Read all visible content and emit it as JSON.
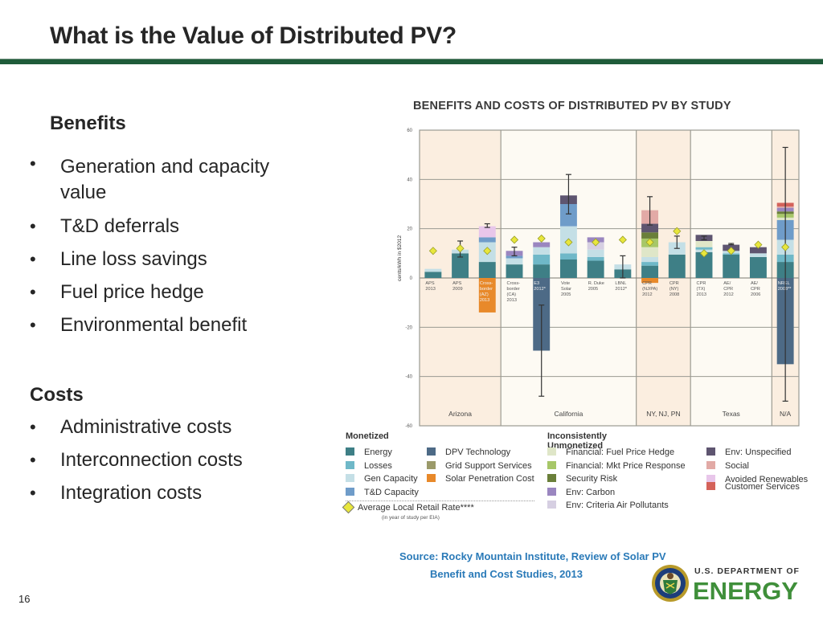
{
  "slide": {
    "title": "What is the Value of Distributed PV?",
    "page_number": "16",
    "benefits_heading": "Benefits",
    "benefits": [
      "Generation and capacity value",
      "T&D deferrals",
      "Line loss savings",
      "Fuel price hedge",
      "Environmental benefit"
    ],
    "costs_heading": "Costs",
    "costs": [
      "Administrative costs",
      "Interconnection costs",
      "Integration costs"
    ],
    "source_line1": "Source: Rocky Mountain Institute, Review of Solar PV",
    "source_line2": "Benefit and Cost Studies, 2013",
    "logo_top": "U.S. DEPARTMENT OF",
    "logo_main": "ENERGY"
  },
  "colors": {
    "title_rule": "#1f5c3a",
    "source_text": "#2a7ab8",
    "energy": "#3e7f86",
    "losses": "#6fb8c8",
    "gen_capacity": "#c4dfe6",
    "td_capacity": "#6f9cc9",
    "dpv_technology": "#4d6a86",
    "grid_support": "#9b9a6a",
    "solar_penetration": "#e8892a",
    "fuel_price_hedge": "#dfe6c8",
    "mkt_price_response": "#a7c768",
    "security_risk": "#6a7f3a",
    "env_carbon": "#9a86c0",
    "env_criteria": "#d6cfe2",
    "env_unspecified": "#5e5570",
    "social": "#e2aaa6",
    "avoided_renewables": "#e8c6ea",
    "customer_services": "#d4625a",
    "retail_rate_marker": "#e8e63c"
  },
  "chart_data": {
    "type": "bar",
    "stacked": true,
    "title": "BENEFITS AND COSTS OF DISTRIBUTED PV BY STUDY",
    "ylabel": "cents/kWh in $2012",
    "xlabel": "",
    "ylim": [
      -60,
      60
    ],
    "yticks": [
      60,
      40,
      20,
      0,
      -20,
      -40,
      -60
    ],
    "grid": true,
    "regions": [
      {
        "name": "Arizona",
        "studies": 3,
        "shaded": true
      },
      {
        "name": "California",
        "studies": 5,
        "shaded": false
      },
      {
        "name": "NY, NJ, PN",
        "studies": 2,
        "shaded": true
      },
      {
        "name": "Texas",
        "studies": 3,
        "shaded": false
      },
      {
        "name": "N/A",
        "studies": 1,
        "shaded": true
      }
    ],
    "categories": [
      "APS 2013",
      "APS 2009",
      "Cross-border (AZ) 2013",
      "Cross-border (CA) 2013",
      "E3 2012*",
      "Vote Solar 2005",
      "R. Duke 2005",
      "LBNL 2012*",
      "CPR (NJ/PA) 2012",
      "CPR (NY) 2008",
      "CPR (TX) 2013",
      "AE/CPR 2012",
      "AE/CPR 2006",
      "NREL 2008**"
    ],
    "category_labels": [
      [
        "APS",
        "2013"
      ],
      [
        "APS",
        "2009"
      ],
      [
        "Cross-",
        "border",
        "(AZ)",
        "2013"
      ],
      [
        "Cross-",
        "border",
        "(CA)",
        "2013"
      ],
      [
        "E3",
        "2012*"
      ],
      [
        "Vote",
        "Solar",
        "2005"
      ],
      [
        "R. Duke",
        "2005"
      ],
      [
        "LBNL",
        "2012*"
      ],
      [
        "CPR",
        "(NJ/PA)",
        "2012"
      ],
      [
        "CPR",
        "(NY)",
        "2008"
      ],
      [
        "CPR",
        "(TX)",
        "2013"
      ],
      [
        "AE/",
        "CPR",
        "2012"
      ],
      [
        "AE/",
        "CPR",
        "2006"
      ],
      [
        "NREL",
        "2008**"
      ]
    ],
    "stacks": [
      [
        {
          "k": "energy",
          "v": 2.5
        },
        {
          "k": "gen_capacity",
          "v": 1.2
        }
      ],
      [
        {
          "k": "energy",
          "v": 10
        },
        {
          "k": "gen_capacity",
          "v": 1.5
        }
      ],
      [
        {
          "k": "energy",
          "v": 6.5
        },
        {
          "k": "gen_capacity",
          "v": 8
        },
        {
          "k": "td_capacity",
          "v": 2
        },
        {
          "k": "avoided_renewables",
          "v": 4.5
        },
        {
          "k": "solar_penetration",
          "v": -14
        }
      ],
      [
        {
          "k": "energy",
          "v": 5.5
        },
        {
          "k": "gen_capacity",
          "v": 2.5
        },
        {
          "k": "td_capacity",
          "v": 1
        },
        {
          "k": "env_carbon",
          "v": 2
        }
      ],
      [
        {
          "k": "energy",
          "v": 5.5
        },
        {
          "k": "losses",
          "v": 4
        },
        {
          "k": "gen_capacity",
          "v": 3
        },
        {
          "k": "env_carbon",
          "v": 2
        },
        {
          "k": "dpv_technology",
          "v": -29.5
        }
      ],
      [
        {
          "k": "energy",
          "v": 7.5
        },
        {
          "k": "losses",
          "v": 2.5
        },
        {
          "k": "gen_capacity",
          "v": 11
        },
        {
          "k": "td_capacity",
          "v": 9
        },
        {
          "k": "env_unspecified",
          "v": 3.5
        }
      ],
      [
        {
          "k": "energy",
          "v": 7
        },
        {
          "k": "losses",
          "v": 1.5
        },
        {
          "k": "gen_capacity",
          "v": 3
        },
        {
          "k": "env_criteria",
          "v": 3
        },
        {
          "k": "env_carbon",
          "v": 2
        }
      ],
      [
        {
          "k": "energy",
          "v": 3.5
        },
        {
          "k": "gen_capacity",
          "v": 2
        }
      ],
      [
        {
          "k": "energy",
          "v": 5
        },
        {
          "k": "losses",
          "v": 1.5
        },
        {
          "k": "gen_capacity",
          "v": 2
        },
        {
          "k": "fuel_price_hedge",
          "v": 4
        },
        {
          "k": "mkt_price_response",
          "v": 3.5
        },
        {
          "k": "security_risk",
          "v": 2.5
        },
        {
          "k": "env_unspecified",
          "v": 3.5
        },
        {
          "k": "social",
          "v": 5.5
        },
        {
          "k": "solar_penetration",
          "v": -2
        }
      ],
      [
        {
          "k": "energy",
          "v": 9.5
        },
        {
          "k": "gen_capacity",
          "v": 5
        }
      ],
      [
        {
          "k": "energy",
          "v": 10.5
        },
        {
          "k": "gen_capacity",
          "v": 1
        },
        {
          "k": "losses",
          "v": 1
        },
        {
          "k": "fuel_price_hedge",
          "v": 2.5
        },
        {
          "k": "env_unspecified",
          "v": 2.5
        }
      ],
      [
        {
          "k": "energy",
          "v": 9.5
        },
        {
          "k": "losses",
          "v": 0.5
        },
        {
          "k": "gen_capacity",
          "v": 1
        },
        {
          "k": "env_unspecified",
          "v": 2.5
        }
      ],
      [
        {
          "k": "energy",
          "v": 8.5
        },
        {
          "k": "gen_capacity",
          "v": 1.5
        },
        {
          "k": "env_unspecified",
          "v": 2.5
        }
      ],
      [
        {
          "k": "energy",
          "v": 6.5
        },
        {
          "k": "losses",
          "v": 3
        },
        {
          "k": "gen_capacity",
          "v": 6
        },
        {
          "k": "td_capacity",
          "v": 8
        },
        {
          "k": "fuel_price_hedge",
          "v": 1
        },
        {
          "k": "mkt_price_response",
          "v": 1.5
        },
        {
          "k": "security_risk",
          "v": 1
        },
        {
          "k": "env_carbon",
          "v": 1.5
        },
        {
          "k": "social",
          "v": 0.5
        },
        {
          "k": "customer_services",
          "v": 1.5
        },
        {
          "k": "dpv_technology",
          "v": -35
        }
      ]
    ],
    "error_bars": [
      null,
      {
        "low": 8.5,
        "high": 15
      },
      {
        "low": 20.5,
        "high": 22
      },
      {
        "low": 9,
        "high": 12.5
      },
      {
        "low": -48,
        "high": -11
      },
      {
        "low": 26,
        "high": 42
      },
      null,
      {
        "low": 0,
        "high": 9
      },
      {
        "low": 21.5,
        "high": 33
      },
      {
        "low": 12,
        "high": 17
      },
      {
        "low": 15.5,
        "high": 17
      },
      {
        "low": 13.5,
        "high": 14
      },
      null,
      {
        "low": -50,
        "high": 53
      }
    ],
    "retail_rate": [
      11,
      12,
      11,
      15.5,
      16,
      14.5,
      14.5,
      15.5,
      14.5,
      19,
      10,
      11,
      13.5,
      12.5
    ],
    "legend": {
      "groups": [
        {
          "title": "Monetized",
          "items": [
            {
              "k": "energy",
              "label": "Energy"
            },
            {
              "k": "losses",
              "label": "Losses"
            },
            {
              "k": "gen_capacity",
              "label": "Gen Capacity"
            },
            {
              "k": "td_capacity",
              "label": "T&D Capacity"
            }
          ]
        },
        {
          "title": "",
          "items": [
            {
              "k": "dpv_technology",
              "label": "DPV Technology"
            },
            {
              "k": "grid_support",
              "label": "Grid Support Services"
            },
            {
              "k": "solar_penetration",
              "label": "Solar Penetration Cost"
            }
          ]
        },
        {
          "title": "Inconsistently Unmonetized",
          "items": [
            {
              "k": "fuel_price_hedge",
              "label": "Financial: Fuel Price Hedge"
            },
            {
              "k": "mkt_price_response",
              "label": "Financial: Mkt Price Response"
            },
            {
              "k": "security_risk",
              "label": "Security Risk"
            },
            {
              "k": "env_carbon",
              "label": "Env: Carbon"
            },
            {
              "k": "env_criteria",
              "label": "Env: Criteria Air Pollutants"
            }
          ]
        },
        {
          "title": "",
          "items": [
            {
              "k": "env_unspecified",
              "label": "Env: Unspecified"
            },
            {
              "k": "social",
              "label": "Social"
            },
            {
              "k": "avoided_renewables",
              "label": "Avoided Renewables"
            },
            {
              "k": "customer_services",
              "label": "Customer Services"
            }
          ]
        }
      ],
      "marker_label": "Average Local Retail Rate****",
      "marker_sublabel": "(in year of study per EIA)"
    }
  }
}
